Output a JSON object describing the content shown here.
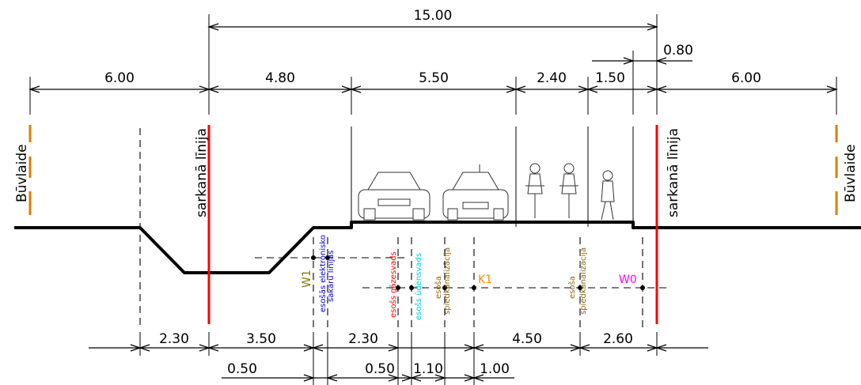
{
  "dimensions_top": {
    "total": "15.00",
    "small": "0.80",
    "row": [
      "6.00",
      "4.80",
      "5.50",
      "2.40",
      "1.50",
      "6.00"
    ]
  },
  "dimensions_bottom": {
    "row1": [
      "2.30",
      "3.50",
      "2.30",
      "4.50",
      "2.60"
    ],
    "row2": [
      "0.50",
      "0.50",
      "1.10",
      "1.00"
    ]
  },
  "labels": {
    "building_line": "Būvlaide",
    "red_line": "sarkanā līnija"
  },
  "utilities": {
    "w1": "W1",
    "comm_cables": [
      "esošās elektronisko",
      "sakaru līnijas"
    ],
    "gas": "esošs gāzesvads",
    "water": "esošs ūdensvads",
    "sewer1": [
      "esoša",
      "spiedkanalizācija"
    ],
    "k1": "K1",
    "sewer2": [
      "esoša",
      "spiedkanalizācija"
    ],
    "w0": "W0"
  },
  "colors": {
    "red_line": "#ff0000",
    "building_line": "#e07b00",
    "w1": "#808000",
    "comm": "#0000cc",
    "gas": "#ff0000",
    "water": "#00c8e6",
    "sewer": "#8b6914",
    "k1": "#ff8c00",
    "w0": "#ff00ff"
  },
  "icons": [
    "car-front-icon",
    "car-rear-icon",
    "cyclist-icon",
    "pedestrian-icon"
  ]
}
